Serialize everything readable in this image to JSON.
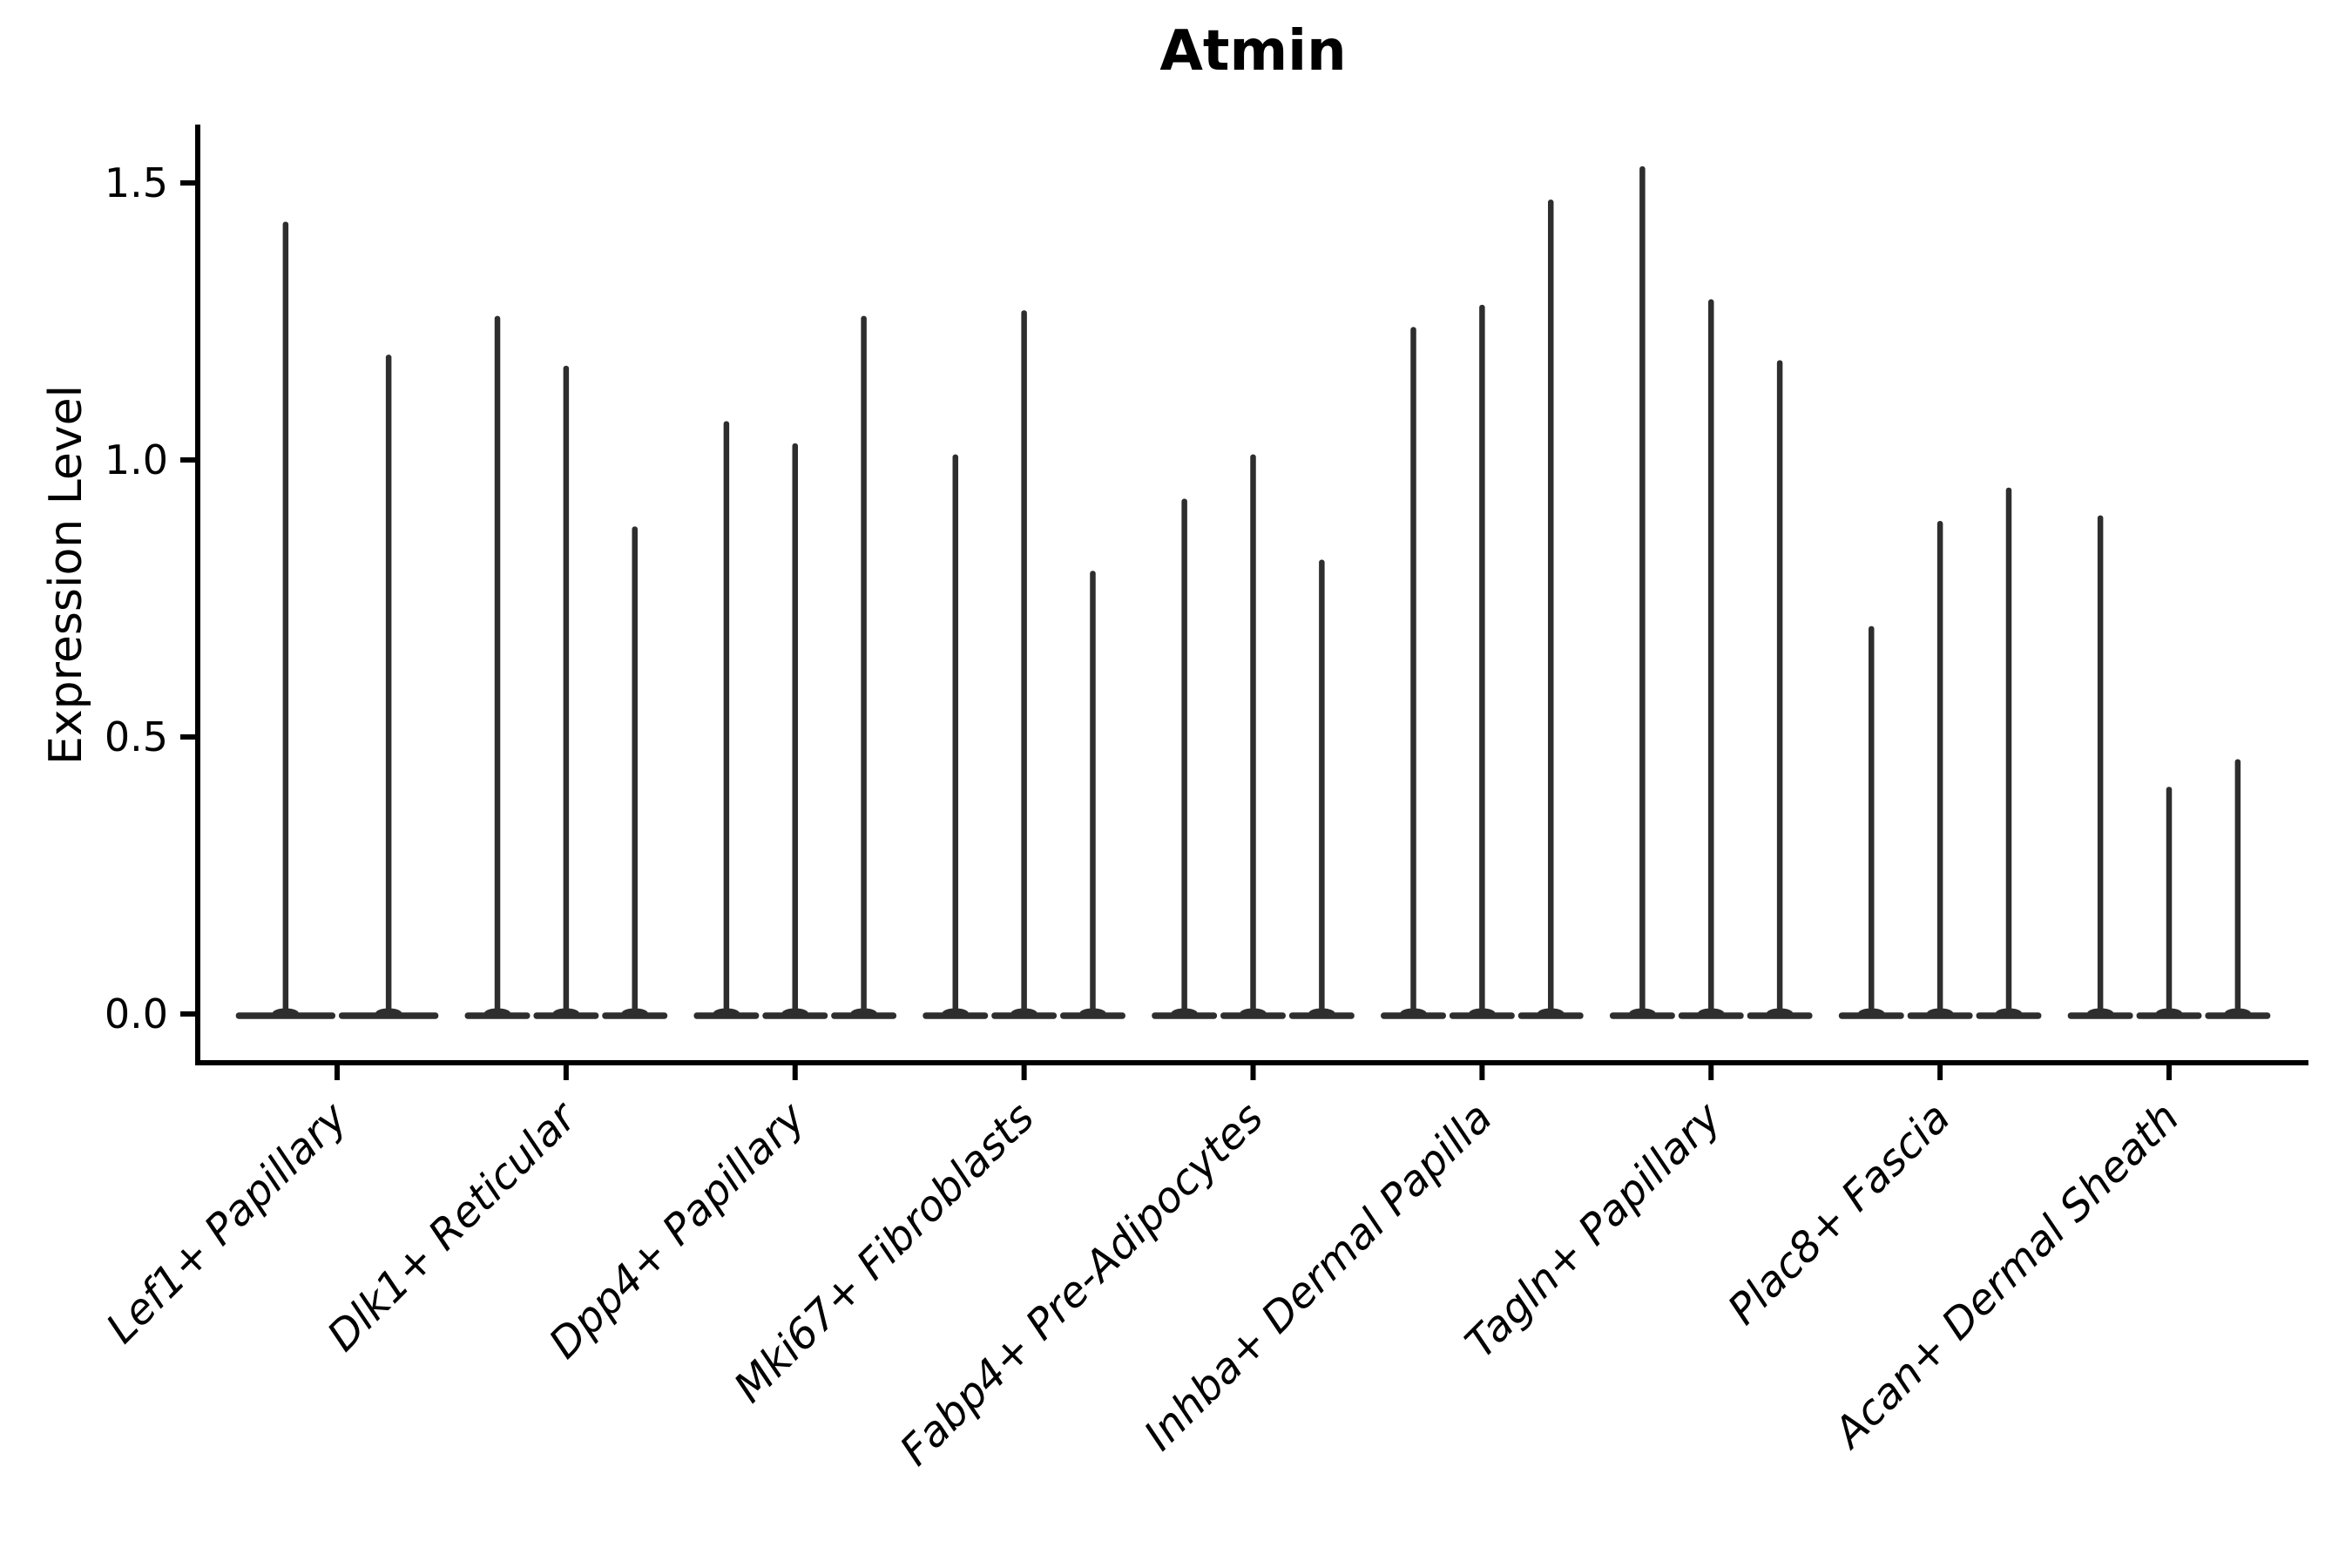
{
  "page": {
    "background": "#ffffff"
  },
  "chart_data": {
    "type": "violin",
    "title": "Atmin",
    "title_weight": "bold",
    "xlabel": "",
    "ylabel": "Expression Level",
    "yticks": [
      0.0,
      0.5,
      1.0,
      1.5
    ],
    "ytick_labels": [
      "0.0",
      "0.5",
      "1.0",
      "1.5"
    ],
    "ylim": [
      -0.09,
      1.61
    ],
    "grid": false,
    "legend": false,
    "violin_style": "needle-thin violins: flat dense base at 0 with a thin spike up to the max expression value",
    "x_tick_label_rotation": 45,
    "x_tick_label_fontstyle": "italic",
    "categories": [
      "Lef1+ Papillary",
      "Dlk1+ Reticular",
      "Dpp4+ Papillary",
      "Mki67+ Fibroblasts",
      "Fabp4+ Pre-Adipocytes",
      "Inhba+ Dermal Papilla",
      "Tagln+ Papillary",
      "Plac8+ Fascia",
      "Acan+ Dermal Sheath"
    ],
    "groups": [
      {
        "category": "Lef1+ Papillary",
        "violin_peaks": [
          1.43,
          1.19
        ]
      },
      {
        "category": "Dlk1+ Reticular",
        "violin_peaks": [
          1.26,
          1.17,
          0.88
        ]
      },
      {
        "category": "Dpp4+ Papillary",
        "violin_peaks": [
          1.07,
          1.03,
          1.26
        ]
      },
      {
        "category": "Mki67+ Fibroblasts",
        "violin_peaks": [
          1.01,
          1.27,
          0.8
        ]
      },
      {
        "category": "Fabp4+ Pre-Adipocytes",
        "violin_peaks": [
          0.93,
          1.01,
          0.82
        ]
      },
      {
        "category": "Inhba+ Dermal Papilla",
        "violin_peaks": [
          1.24,
          1.28,
          1.47
        ]
      },
      {
        "category": "Tagln+ Papillary",
        "violin_peaks": [
          1.53,
          1.29,
          1.18
        ]
      },
      {
        "category": "Plac8+ Fascia",
        "violin_peaks": [
          0.7,
          0.89,
          0.95
        ]
      },
      {
        "category": "Acan+ Dermal Sheath",
        "violin_peaks": [
          0.9,
          0.41,
          0.46
        ]
      }
    ],
    "colors": {
      "violin_fill": "#2e2e2e",
      "axis": "#000000",
      "text": "#000000",
      "background": "#ffffff"
    }
  }
}
